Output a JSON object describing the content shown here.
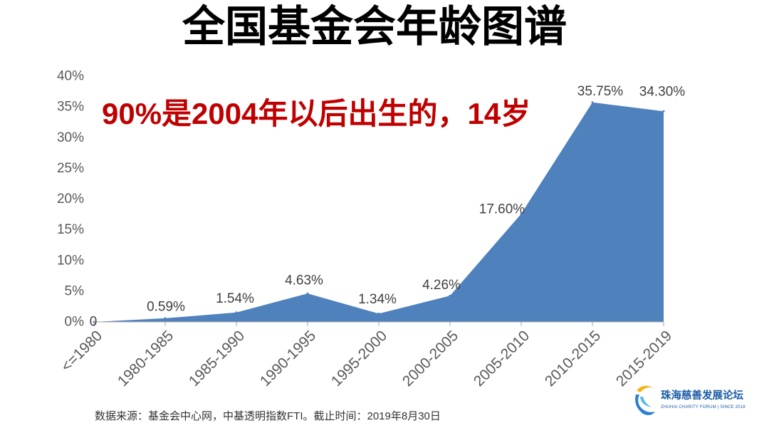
{
  "title": "全国基金会年龄图谱",
  "annotation": "90%是2004年以后出生的，14岁",
  "source_note": "数据来源：基金会中心网，中基透明指数FTI。截止时间：2019年8月30日",
  "logo": {
    "icon": "swirl-logo-icon",
    "name": "珠海慈善发展论坛",
    "tagline": "ZHUHAI CHARITY FORUM | SINCE 2018"
  },
  "colors": {
    "title": "#000000",
    "annotation": "#c00000",
    "area_fill": "#4f81bd",
    "axis_text": "#595959",
    "data_label": "#404040",
    "logo_text": "#1a5aa6",
    "logo_yellow": "#f4b41a",
    "logo_blue": "#2a7fd1",
    "logo_light_blue": "#5bb8e8"
  },
  "chart_data": {
    "type": "area",
    "categories": [
      "<=1980",
      "1980-1985",
      "1985-1990",
      "1990-1995",
      "1995-2000",
      "2000-2005",
      "2005-2010",
      "2010-2015",
      "2015-2019"
    ],
    "values": [
      0,
      0.59,
      1.54,
      4.63,
      1.34,
      4.26,
      17.6,
      35.75,
      34.3
    ],
    "data_labels": [
      "0",
      "0.59%",
      "1.54%",
      "4.63%",
      "1.34%",
      "4.26%",
      "17.60%",
      "35.75%",
      "34.30%"
    ],
    "ylim": [
      0,
      40
    ],
    "y_ticks": [
      0,
      5,
      10,
      15,
      20,
      25,
      30,
      35,
      40
    ],
    "y_tick_labels": [
      "0%",
      "5%",
      "10%",
      "15%",
      "20%",
      "25%",
      "30%",
      "35%",
      "40%"
    ],
    "grid": false,
    "legend": false
  }
}
